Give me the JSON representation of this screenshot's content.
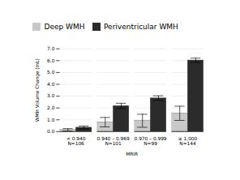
{
  "chart_data": {
    "type": "bar",
    "categories": [
      "< 0.940\nN=106",
      "0.940 – 0.969\nN=101",
      "0.970 – 0.999\nN=99",
      "≥ 1.000\nN=144"
    ],
    "series": [
      {
        "name": "Deep WMH",
        "color": "#c8c8c8",
        "values": [
          0.15,
          0.8,
          0.92,
          1.55
        ],
        "errors": [
          0.1,
          0.4,
          0.55,
          0.6
        ]
      },
      {
        "name": "Periventricular WMH",
        "color": "#2b2b2b",
        "values": [
          0.35,
          2.18,
          2.83,
          6.03
        ],
        "errors": [
          0.12,
          0.22,
          0.2,
          0.18
        ]
      }
    ],
    "xlabel": "MRIR",
    "ylabel": "WMH Volume Change (mL)",
    "ylim": [
      0,
      7.0
    ],
    "yticks": [
      {
        "value": 0,
        "label": "0.0"
      },
      {
        "value": 1,
        "label": "1.0"
      },
      {
        "value": 2,
        "label": "2.0"
      },
      {
        "value": 3,
        "label": "3.0"
      },
      {
        "value": 4,
        "label": "4.0"
      },
      {
        "value": 5,
        "label": "5.0"
      },
      {
        "value": 6,
        "label": "6.0"
      },
      {
        "value": 7,
        "label": "7.0"
      }
    ],
    "grid": true,
    "legend": "top"
  }
}
